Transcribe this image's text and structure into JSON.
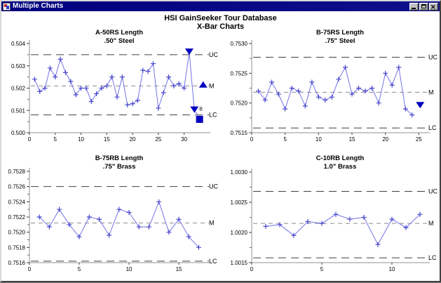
{
  "window": {
    "title": "Multiple Charts"
  },
  "header": {
    "title": "HSI GainSeeker Tour Database",
    "subtitle": "X-Bar Charts"
  },
  "colors": {
    "titlebar_bg": "#000080",
    "series_line": "#7373e6",
    "marker": "#4646cc",
    "flag": "#0000bf",
    "control_dark": "#404040",
    "control_mid": "#8a8a8a",
    "axis": "#909090"
  },
  "chart_data": [
    {
      "type": "line",
      "title": "A-50RS Length",
      "subtitle": ".50\" Steel",
      "ylim": [
        0.5,
        0.504
      ],
      "ytick_values": [
        0.5,
        0.501,
        0.502,
        0.503,
        0.504
      ],
      "ytick_labels": [
        "0.500",
        "0.501",
        "0.502",
        "0.503",
        "0.504"
      ],
      "xlim": [
        0,
        34
      ],
      "xticks": [
        0,
        5,
        10,
        15,
        20,
        25,
        30
      ],
      "control_lines": [
        {
          "label": "UC",
          "value": 0.5035
        },
        {
          "label": "M",
          "value": 0.5021
        },
        {
          "label": "LC",
          "value": 0.5008
        }
      ],
      "values": [
        0.5024,
        0.50185,
        0.502,
        0.5029,
        0.5025,
        0.5033,
        0.5027,
        0.5023,
        0.5017,
        0.502,
        0.502,
        0.5014,
        0.50175,
        0.502,
        0.5021,
        0.5025,
        0.5016,
        0.5025,
        0.50125,
        0.5013,
        0.50145,
        0.5028,
        0.50275,
        0.5031,
        0.5011,
        0.5018,
        0.5025,
        0.5021,
        0.5022,
        0.502,
        0.5036,
        0.501,
        0.5007
      ],
      "marker_skip": [
        31,
        32,
        33
      ],
      "annotations": [
        {
          "shape": "triangle-down",
          "x": 31,
          "y": 0.50365,
          "label": ""
        },
        {
          "shape": "triangle-down",
          "x": 32,
          "y": 0.50105,
          "label": "B"
        },
        {
          "shape": "square",
          "x": 33,
          "y": 0.5006,
          "label": ""
        },
        {
          "shape": "triangle-up",
          "x": 33.7,
          "y": 0.50215,
          "label": ""
        }
      ]
    },
    {
      "type": "line",
      "title": "B-75RS Length",
      "subtitle": ".75\" Steel",
      "ylim": [
        0.7515,
        0.753
      ],
      "ytick_values": [
        0.7515,
        0.752,
        0.7525,
        0.753
      ],
      "ytick_labels": [
        "0.7515",
        "0.7520",
        "0.7525",
        "0.7530"
      ],
      "xlim": [
        0,
        25.8
      ],
      "xticks": [
        0,
        5,
        10,
        15,
        20,
        25
      ],
      "control_lines": [
        {
          "label": "UC",
          "value": 0.75277
        },
        {
          "label": "M",
          "value": 0.75218
        },
        {
          "label": "LC",
          "value": 0.75158
        }
      ],
      "values": [
        0.7522,
        0.75205,
        0.75235,
        0.75215,
        0.7519,
        0.75225,
        0.7522,
        0.75195,
        0.75235,
        0.7521,
        0.75205,
        0.7521,
        0.7524,
        0.7526,
        0.75215,
        0.75225,
        0.7522,
        0.75225,
        0.752,
        0.7525,
        0.7523,
        0.7526,
        0.7519,
        0.7518
      ],
      "marker_skip": [],
      "annotations": [
        {
          "shape": "triangle-down",
          "x": 25.2,
          "y": 0.75197,
          "label": ""
        }
      ]
    },
    {
      "type": "line",
      "title": "B-75RB Length",
      "subtitle": ".75\" Brass",
      "ylim": [
        0.7516,
        0.7528
      ],
      "ytick_values": [
        0.7516,
        0.7518,
        0.752,
        0.7522,
        0.7524,
        0.7526,
        0.7528
      ],
      "ytick_labels": [
        "0.7516",
        "0.7518",
        "0.7520",
        "0.7522",
        "0.7524",
        "0.7526",
        "0.7528"
      ],
      "xlim": [
        0,
        17.6
      ],
      "xticks": [
        0,
        5,
        10,
        15
      ],
      "control_lines": [
        {
          "label": "UC",
          "value": 0.7526
        },
        {
          "label": "M",
          "value": 0.75212
        },
        {
          "label": "LC",
          "value": 0.75162
        }
      ],
      "values": [
        0.7522,
        0.75207,
        0.7523,
        0.7521,
        0.75194,
        0.7522,
        0.75217,
        0.75196,
        0.7523,
        0.75226,
        0.75207,
        0.75207,
        0.7524,
        0.752,
        0.75217,
        0.75194,
        0.7518
      ],
      "marker_skip": [],
      "annotations": []
    },
    {
      "type": "line",
      "title": "C-10RB Length",
      "subtitle": "1.0\" Brass",
      "ylim": [
        1.0015,
        1.003
      ],
      "ytick_values": [
        1.0015,
        1.002,
        1.0025,
        1.003
      ],
      "ytick_labels": [
        "1.0015",
        "1.0020",
        "1.0025",
        "1.0030"
      ],
      "xlim": [
        0,
        12.3
      ],
      "xticks": [
        0,
        5,
        10
      ],
      "control_lines": [
        {
          "label": "UC",
          "value": 1.00268
        },
        {
          "label": "M",
          "value": 1.00215
        },
        {
          "label": "LC",
          "value": 1.00158
        }
      ],
      "values": [
        1.0021,
        1.00213,
        1.00195,
        1.00218,
        1.00215,
        1.0023,
        1.00222,
        1.00225,
        1.0018,
        1.00222,
        1.00208,
        1.0023
      ],
      "marker_skip": [],
      "annotations": []
    }
  ]
}
